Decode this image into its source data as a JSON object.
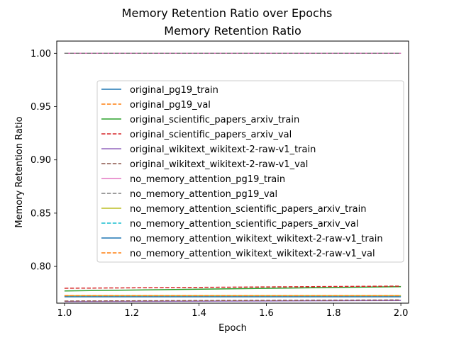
{
  "figure": {
    "suptitle": "Memory Retention Ratio over Epochs"
  },
  "chart_data": {
    "type": "line",
    "title": "Memory Retention Ratio",
    "xlabel": "Epoch",
    "ylabel": "Memory Retention Ratio",
    "xlim": [
      0.977,
      2.023
    ],
    "ylim": [
      0.7655,
      1.0115
    ],
    "xticks": [
      "1.0",
      "1.2",
      "1.4",
      "1.6",
      "1.8",
      "2.0"
    ],
    "yticks": [
      "0.80",
      "0.85",
      "0.90",
      "0.95",
      "1.00"
    ],
    "legend_position": "center-right",
    "grid": false,
    "x": [
      1.0,
      2.0
    ],
    "series": [
      {
        "name": "original_pg19_train",
        "color": "#1f77b4",
        "dash": "solid",
        "values": [
          1.0,
          1.0
        ]
      },
      {
        "name": "original_pg19_val",
        "color": "#ff7f0e",
        "dash": "dashed",
        "values": [
          1.0,
          1.0
        ]
      },
      {
        "name": "original_scientific_papers_arxiv_train",
        "color": "#2ca02c",
        "dash": "solid",
        "values": [
          0.777,
          0.781
        ]
      },
      {
        "name": "original_scientific_papers_arxiv_val",
        "color": "#d62728",
        "dash": "dashed",
        "values": [
          0.7795,
          0.7815
        ]
      },
      {
        "name": "original_wikitext_wikitext-2-raw-v1_train",
        "color": "#9467bd",
        "dash": "solid",
        "values": [
          0.767,
          0.768
        ]
      },
      {
        "name": "original_wikitext_wikitext-2-raw-v1_val",
        "color": "#8c564b",
        "dash": "dashed",
        "values": [
          0.7675,
          0.7685
        ]
      },
      {
        "name": "no_memory_attention_pg19_train",
        "color": "#e377c2",
        "dash": "solid",
        "values": [
          1.0,
          1.0
        ]
      },
      {
        "name": "no_memory_attention_pg19_val",
        "color": "#7f7f7f",
        "dash": "dashed",
        "values": [
          1.0,
          1.0
        ]
      },
      {
        "name": "no_memory_attention_scientific_papers_arxiv_train",
        "color": "#bcbd22",
        "dash": "solid",
        "values": [
          0.7725,
          0.7725
        ]
      },
      {
        "name": "no_memory_attention_scientific_papers_arxiv_val",
        "color": "#17becf",
        "dash": "dashed",
        "values": [
          0.772,
          0.772
        ]
      },
      {
        "name": "no_memory_attention_wikitext_wikitext-2-raw-v1_train",
        "color": "#1f77b4",
        "dash": "solid",
        "values": [
          0.7715,
          0.7715
        ]
      },
      {
        "name": "no_memory_attention_wikitext_wikitext-2-raw-v1_val",
        "color": "#ff7f0e",
        "dash": "dashed",
        "values": [
          0.7725,
          0.7725
        ]
      }
    ]
  }
}
